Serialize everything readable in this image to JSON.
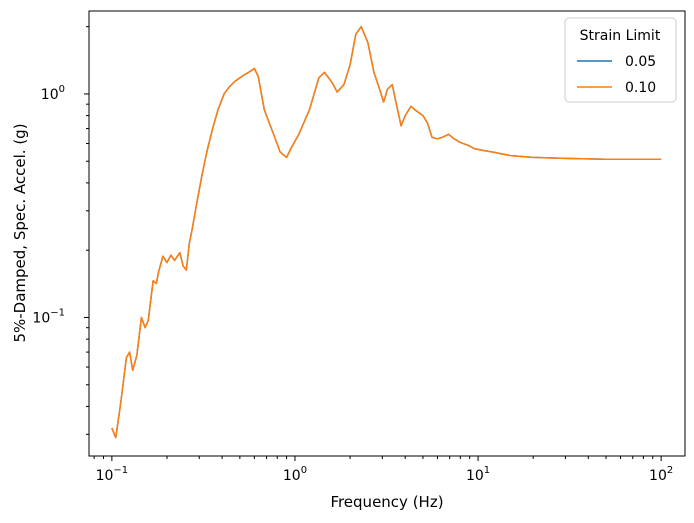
{
  "chart_data": {
    "type": "line",
    "xlabel": "Frequency (Hz)",
    "ylabel": "5%-Damped, Spec. Accel. (g)",
    "xscale": "log",
    "yscale": "log",
    "xlim": [
      0.075,
      135
    ],
    "ylim": [
      0.024,
      2.35
    ],
    "x_ticks": [
      {
        "value": 0.1,
        "base": "10",
        "exp": "−1"
      },
      {
        "value": 1,
        "base": "10",
        "exp": "0"
      },
      {
        "value": 10,
        "base": "10",
        "exp": "1"
      },
      {
        "value": 100,
        "base": "10",
        "exp": "2"
      }
    ],
    "y_ticks": [
      {
        "value": 0.1,
        "base": "10",
        "exp": "−1"
      },
      {
        "value": 1,
        "base": "10",
        "exp": "0"
      }
    ],
    "grid": false,
    "legend": {
      "title": "Strain Limit",
      "position": "upper right"
    },
    "x": [
      0.1,
      0.105,
      0.112,
      0.12,
      0.125,
      0.13,
      0.137,
      0.145,
      0.152,
      0.158,
      0.168,
      0.175,
      0.18,
      0.19,
      0.2,
      0.21,
      0.22,
      0.235,
      0.245,
      0.255,
      0.265,
      0.275,
      0.29,
      0.31,
      0.33,
      0.355,
      0.38,
      0.41,
      0.44,
      0.47,
      0.5,
      0.53,
      0.56,
      0.6,
      0.63,
      0.68,
      0.72,
      0.77,
      0.83,
      0.9,
      0.95,
      1.05,
      1.2,
      1.35,
      1.45,
      1.6,
      1.7,
      1.85,
      2.0,
      2.15,
      2.3,
      2.5,
      2.7,
      2.9,
      3.05,
      3.2,
      3.4,
      3.6,
      3.8,
      4.0,
      4.3,
      4.6,
      5.0,
      5.3,
      5.6,
      6.0,
      6.4,
      6.9,
      7.4,
      7.9,
      8.3,
      8.8,
      9.5,
      10.5,
      12,
      15,
      20,
      30,
      50,
      100
    ],
    "series": [
      {
        "name": "0.05",
        "color": "#1f77b4",
        "values": [
          0.032,
          0.029,
          0.042,
          0.066,
          0.07,
          0.058,
          0.068,
          0.1,
          0.09,
          0.097,
          0.146,
          0.142,
          0.16,
          0.188,
          0.176,
          0.19,
          0.18,
          0.195,
          0.17,
          0.163,
          0.215,
          0.25,
          0.32,
          0.43,
          0.55,
          0.7,
          0.85,
          1.0,
          1.08,
          1.14,
          1.18,
          1.22,
          1.25,
          1.3,
          1.2,
          0.85,
          0.75,
          0.65,
          0.55,
          0.52,
          0.57,
          0.66,
          0.85,
          1.18,
          1.25,
          1.12,
          1.02,
          1.1,
          1.35,
          1.85,
          2.0,
          1.7,
          1.25,
          1.05,
          0.92,
          1.05,
          1.1,
          0.88,
          0.72,
          0.8,
          0.88,
          0.84,
          0.8,
          0.74,
          0.64,
          0.63,
          0.64,
          0.66,
          0.63,
          0.61,
          0.6,
          0.59,
          0.57,
          0.56,
          0.55,
          0.53,
          0.52,
          0.515,
          0.51,
          0.51
        ]
      },
      {
        "name": "0.10",
        "color": "#ff7f0e",
        "values": [
          0.032,
          0.029,
          0.042,
          0.066,
          0.07,
          0.058,
          0.068,
          0.1,
          0.09,
          0.097,
          0.146,
          0.142,
          0.16,
          0.188,
          0.176,
          0.19,
          0.18,
          0.195,
          0.17,
          0.163,
          0.215,
          0.25,
          0.32,
          0.43,
          0.55,
          0.7,
          0.85,
          1.0,
          1.08,
          1.14,
          1.18,
          1.22,
          1.25,
          1.3,
          1.2,
          0.85,
          0.75,
          0.65,
          0.55,
          0.52,
          0.57,
          0.66,
          0.85,
          1.18,
          1.25,
          1.12,
          1.02,
          1.1,
          1.35,
          1.85,
          2.0,
          1.7,
          1.25,
          1.05,
          0.92,
          1.05,
          1.1,
          0.88,
          0.72,
          0.8,
          0.88,
          0.84,
          0.8,
          0.74,
          0.64,
          0.63,
          0.64,
          0.66,
          0.63,
          0.61,
          0.6,
          0.59,
          0.57,
          0.56,
          0.55,
          0.53,
          0.52,
          0.515,
          0.51,
          0.51
        ]
      }
    ]
  }
}
